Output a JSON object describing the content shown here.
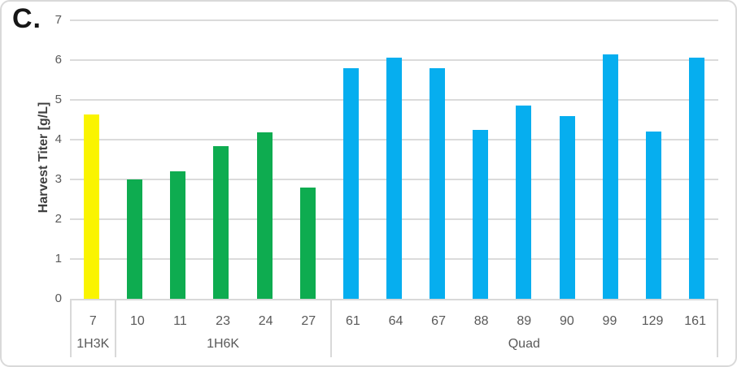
{
  "panel_label": "C.",
  "y_axis": {
    "title": "Harvest Titer [g/L]",
    "ticks": [
      "0",
      "1",
      "2",
      "3",
      "4",
      "5",
      "6",
      "7"
    ],
    "max": 7
  },
  "colors": {
    "yellow": "#FAF400",
    "green": "#0EAC50",
    "blue": "#06AEEF",
    "gridline": "#DBDBDB",
    "border": "#D9D9D9",
    "tick_text": "#595959",
    "axis_title_text": "#3E3E3E"
  },
  "chart_data": {
    "type": "bar",
    "title": "C.",
    "xlabel": "",
    "ylabel": "Harvest Titer [g/L]",
    "ylim": [
      0,
      7
    ],
    "yticks": [
      0,
      1,
      2,
      3,
      4,
      5,
      6,
      7
    ],
    "grid": true,
    "legend": false,
    "categories": [
      "7",
      "10",
      "11",
      "23",
      "24",
      "27",
      "61",
      "64",
      "67",
      "88",
      "89",
      "90",
      "99",
      "129",
      "161"
    ],
    "values": [
      4.63,
      3.0,
      3.2,
      3.83,
      4.18,
      2.8,
      5.79,
      6.07,
      5.79,
      4.24,
      4.85,
      4.6,
      6.15,
      4.2,
      6.06
    ],
    "groups": [
      {
        "name": "1H3K",
        "color": "#FAF400",
        "categories": [
          "7"
        ],
        "values": [
          4.63
        ]
      },
      {
        "name": "1H6K",
        "color": "#0EAC50",
        "categories": [
          "10",
          "11",
          "23",
          "24",
          "27"
        ],
        "values": [
          3.0,
          3.2,
          3.83,
          4.18,
          2.8
        ]
      },
      {
        "name": "Quad",
        "color": "#06AEEF",
        "categories": [
          "61",
          "64",
          "67",
          "88",
          "89",
          "90",
          "99",
          "129",
          "161"
        ],
        "values": [
          5.79,
          6.07,
          5.79,
          4.24,
          4.85,
          4.6,
          6.15,
          4.2,
          6.06
        ]
      }
    ]
  }
}
